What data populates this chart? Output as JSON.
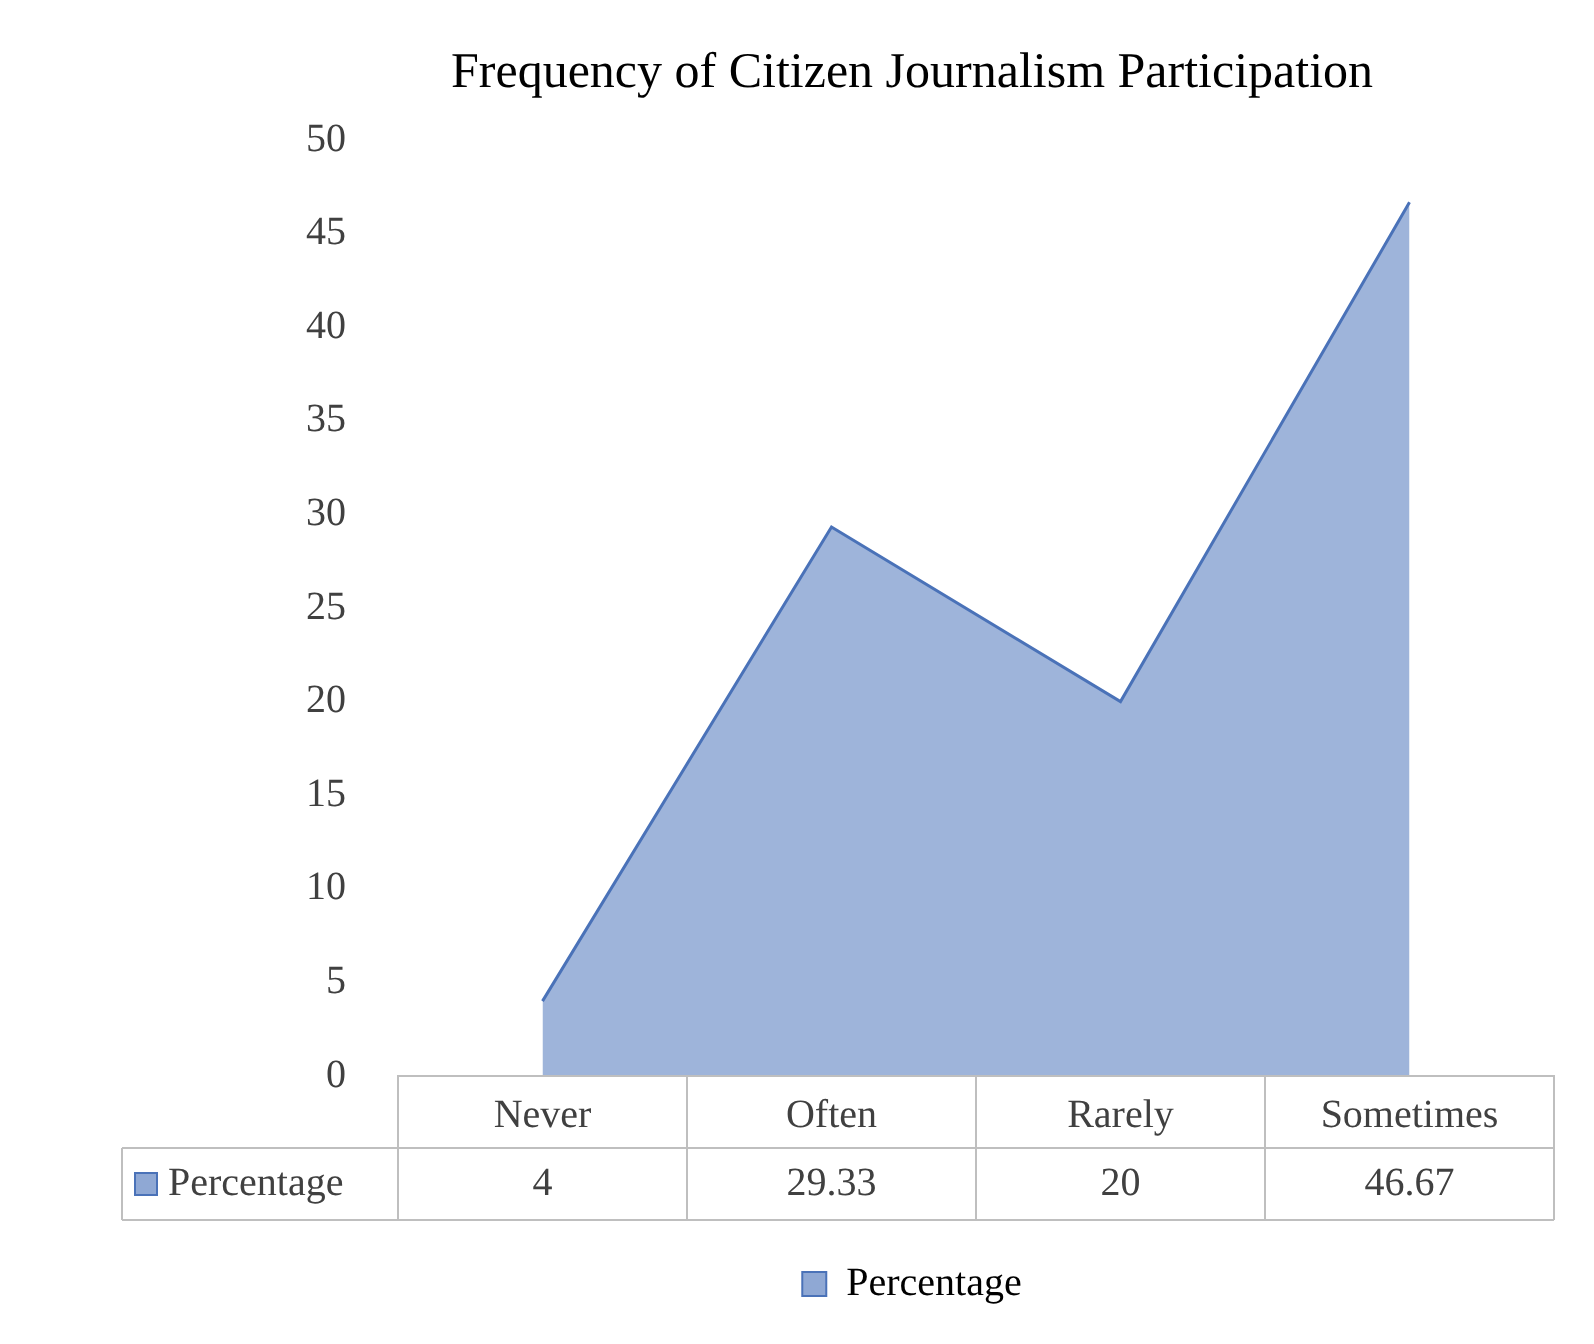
{
  "chart_data": {
    "type": "area",
    "title": "Frequency of Citizen Journalism Participation",
    "categories": [
      "Never",
      "Often",
      "Rarely",
      "Sometimes"
    ],
    "series": [
      {
        "name": "Percentage",
        "color": "#8fa8d4",
        "values": [
          4,
          29.33,
          20,
          46.67
        ]
      }
    ],
    "ylim": [
      0,
      50
    ],
    "yticks": [
      0,
      5,
      10,
      15,
      20,
      25,
      30,
      35,
      40,
      45,
      50
    ],
    "grid": false,
    "legend": "bottom",
    "data_labels": true
  }
}
